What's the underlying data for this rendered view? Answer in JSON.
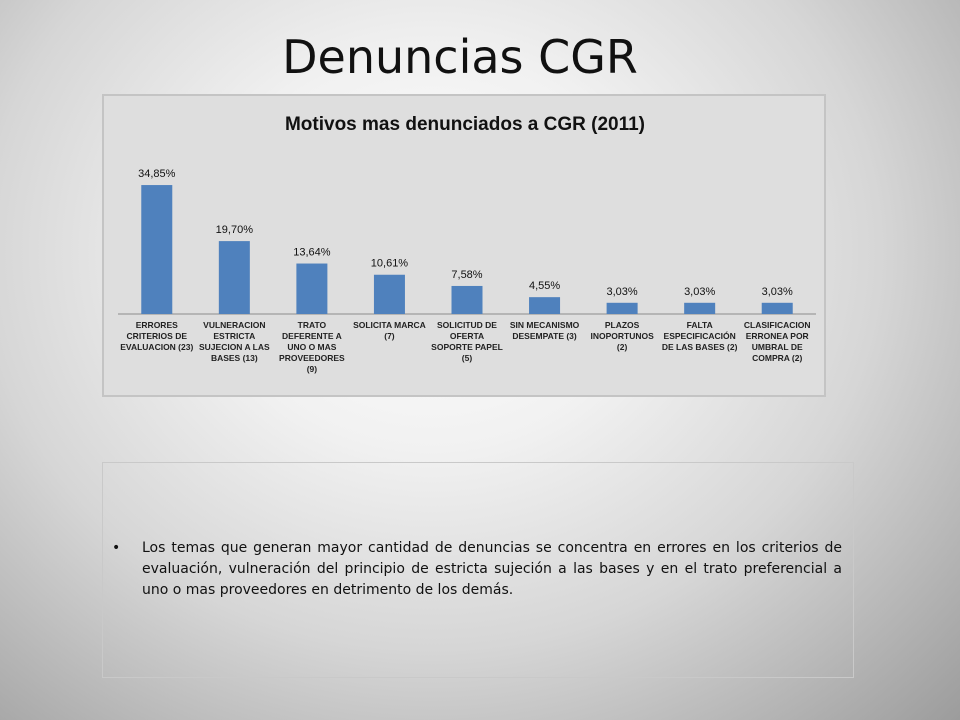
{
  "slide": {
    "title": "Denuncias CGR",
    "bullet": "Los temas que generan mayor cantidad de denuncias se concentra en errores en los criterios de evaluación, vulneración del principio de estricta sujeción a las bases y en el trato preferencial a uno o mas proveedores en detrimento de los demás.",
    "bullet_marker": "•"
  },
  "chart_data": {
    "type": "bar",
    "title": "Motivos mas denunciados a CGR (2011)",
    "xlabel": "",
    "ylabel": "",
    "ylim": [
      0,
      40
    ],
    "grid": false,
    "legend": "none",
    "bar_color": "#4f81bd",
    "categories": [
      [
        "ERRORES",
        "CRITERIOS DE",
        "EVALUACION (23)"
      ],
      [
        "VULNERACION",
        "ESTRICTA",
        "SUJECION  A LAS",
        "BASES (13)"
      ],
      [
        "TRATO",
        "DEFERENTE A",
        "UNO O MAS",
        "PROVEEDORES",
        "(9)"
      ],
      [
        "SOLICITA MARCA",
        "(7)"
      ],
      [
        "SOLICITUD DE",
        "OFERTA",
        "SOPORTE PAPEL",
        "(5)"
      ],
      [
        "SIN MECANISMO",
        "DESEMPATE (3)"
      ],
      [
        "PLAZOS",
        "INOPORTUNOS",
        "(2)"
      ],
      [
        "FALTA",
        "ESPECIFICACIÓN",
        "DE LAS BASES (2)"
      ],
      [
        "CLASIFICACION",
        "ERRONEA POR",
        "UMBRAL DE",
        "COMPRA (2)"
      ]
    ],
    "values": [
      34.85,
      19.7,
      13.64,
      10.61,
      7.58,
      4.55,
      3.03,
      3.03,
      3.03
    ],
    "data_labels": [
      "34,85%",
      "19,70%",
      "13,64%",
      "10,61%",
      "7,58%",
      "4,55%",
      "3,03%",
      "3,03%",
      "3,03%"
    ]
  }
}
